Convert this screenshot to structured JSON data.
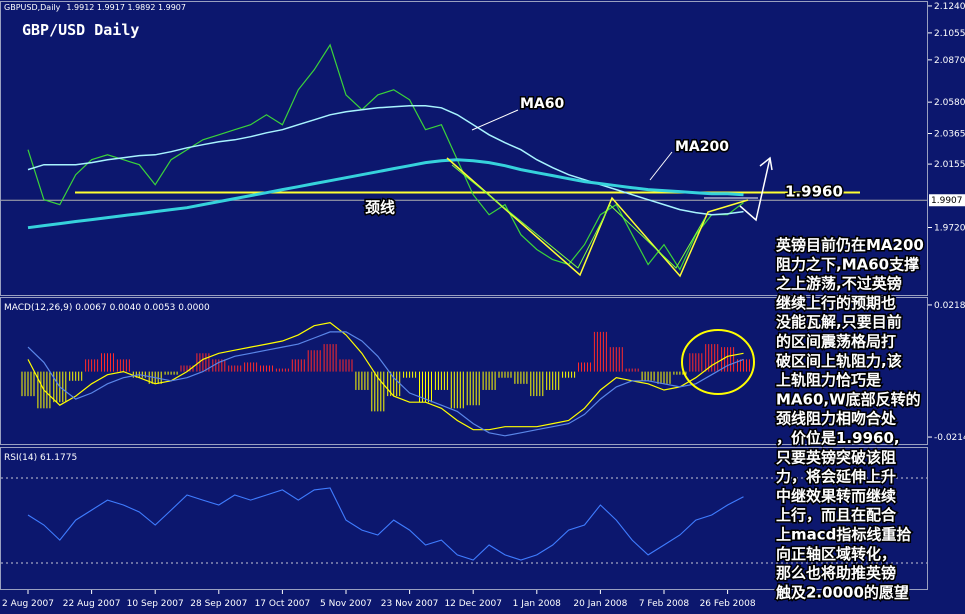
{
  "header": {
    "symbol": "GBPUSD,Daily",
    "quote": "1.9912 1.9917 1.9892 1.9907"
  },
  "chart_data": [
    {
      "type": "line",
      "title": "GBP/USD Daily",
      "series": [
        {
          "color": "#3ad43a",
          "values": [
            2.0254,
            1.9911,
            1.9877,
            2.0082,
            2.0185,
            2.0219,
            2.0185,
            2.0151,
            2.0014,
            2.0185,
            2.0254,
            2.0322,
            2.0356,
            2.0391,
            2.0425,
            2.0493,
            2.0425,
            2.0665,
            2.0802,
            2.0973,
            2.063,
            2.0528,
            2.063,
            2.0665,
            2.0596,
            2.0391,
            2.0425,
            2.0185,
            1.9945,
            1.9808,
            1.9877,
            1.9671,
            1.9569,
            1.95,
            1.9466,
            1.9603,
            1.9808,
            1.9877,
            1.9671,
            1.9466,
            1.9603,
            1.9432,
            1.9671,
            1.9808,
            1.9808,
            1.9891
          ]
        },
        {
          "name": "MA60",
          "color": "#a8f4ff",
          "values": [
            2.0117,
            2.0151,
            2.0151,
            2.0151,
            2.0165,
            2.0185,
            2.0199,
            2.0213,
            2.0219,
            2.024,
            2.0267,
            2.0288,
            2.0308,
            2.0322,
            2.0343,
            2.037,
            2.0391,
            2.0425,
            2.0459,
            2.0493,
            2.0514,
            2.0528,
            2.0541,
            2.0548,
            2.0555,
            2.0555,
            2.0541,
            2.0493,
            2.0425,
            2.0356,
            2.0302,
            2.0254,
            2.0185,
            2.013,
            2.0082,
            2.0048,
            2.0014,
            1.998,
            1.9945,
            1.9911,
            1.9877,
            1.9843,
            1.9822,
            1.9808,
            1.9815,
            1.9829
          ]
        },
        {
          "name": "MA200",
          "color": "#36d2dc",
          "values": [
            1.9719,
            1.9733,
            1.9747,
            1.9761,
            1.9774,
            1.9788,
            1.9802,
            1.9815,
            1.9829,
            1.9843,
            1.9856,
            1.9877,
            1.9898,
            1.9918,
            1.9939,
            1.9959,
            1.998,
            2.0,
            2.0021,
            2.0041,
            2.0062,
            2.0082,
            2.0103,
            2.0124,
            2.0144,
            2.0165,
            2.0178,
            2.0185,
            2.0178,
            2.0165,
            2.0144,
            2.0117,
            2.0096,
            2.0076,
            2.0055,
            2.0035,
            2.0021,
            2.0007,
            1.9993,
            1.998,
            1.9973,
            1.9966,
            1.9959,
            1.9952,
            1.9952,
            1.9945
          ]
        }
      ],
      "ylim": [
        1.9257,
        2.1267
      ],
      "yticks": [
        {
          "value": 2.124,
          "label": "2.1240"
        },
        2.1055,
        {
          "value": 2.087,
          "label": "2.0870"
        },
        {
          "value": 2.058,
          "label": "2.0580"
        },
        2.0365,
        2.0155,
        {
          "value": 1.972,
          "label": "1.9720"
        }
      ],
      "current_price": 1.9907,
      "neckline": {
        "value": 1.996,
        "label": "1.9960"
      },
      "neckline_name": "颈线",
      "annotations": [
        "MA60",
        "MA200"
      ]
    },
    {
      "type": "macd",
      "title": "MACD(12,26,9) 0.0067 0.0040 0.0053 0.0000",
      "up_color": "#ff2a2a",
      "down_color": "#ffff00",
      "histogram": [
        -0.008,
        -0.012,
        -0.01,
        -0.003,
        0.004,
        0.006,
        0.004,
        -0.002,
        -0.004,
        -0.001,
        0.002,
        0.006,
        0.004,
        0.002,
        0.003,
        0.002,
        0.001,
        0.004,
        0.007,
        0.009,
        0.004,
        -0.006,
        -0.013,
        -0.008,
        -0.002,
        -0.01,
        -0.006,
        -0.012,
        -0.011,
        -0.006,
        -0.002,
        -0.004,
        -0.008,
        -0.006,
        -0.002,
        0.003,
        0.013,
        0.008,
        0.001,
        -0.003,
        -0.004,
        -0.001,
        0.006,
        0.009,
        0.008,
        0.004
      ],
      "series": [
        {
          "color": "#ffff00",
          "values": [
            0.004,
            -0.006,
            -0.011,
            -0.008,
            -0.004,
            -0.001,
            0.0,
            -0.002,
            -0.004,
            -0.003,
            0.0,
            0.004,
            0.006,
            0.007,
            0.008,
            0.009,
            0.01,
            0.012,
            0.015,
            0.016,
            0.012,
            0.006,
            -0.002,
            -0.008,
            -0.01,
            -0.01,
            -0.012,
            -0.016,
            -0.019,
            -0.019,
            -0.018,
            -0.018,
            -0.018,
            -0.017,
            -0.016,
            -0.012,
            -0.006,
            -0.002,
            -0.003,
            -0.004,
            -0.006,
            -0.005,
            -0.002,
            0.002,
            0.005,
            0.006
          ]
        },
        {
          "color": "#5a86e8",
          "values": [
            0.008,
            0.003,
            -0.005,
            -0.009,
            -0.007,
            -0.004,
            -0.002,
            -0.001,
            -0.002,
            -0.003,
            -0.002,
            0.0,
            0.003,
            0.005,
            0.006,
            0.007,
            0.008,
            0.009,
            0.011,
            0.013,
            0.013,
            0.01,
            0.005,
            -0.002,
            -0.007,
            -0.009,
            -0.011,
            -0.013,
            -0.017,
            -0.02,
            -0.021,
            -0.02,
            -0.019,
            -0.018,
            -0.017,
            -0.014,
            -0.009,
            -0.005,
            -0.003,
            -0.003,
            -0.004,
            -0.005,
            -0.004,
            -0.001,
            0.002,
            0.004
          ]
        }
      ],
      "ylim": [
        -0.024,
        0.0244
      ],
      "yticks": [
        {
          "value": 0.0218,
          "label": "0.0218"
        },
        {
          "value": -0.0214,
          "label": "-0.0214"
        }
      ]
    },
    {
      "type": "line",
      "title": "RSI(14) 61.1775",
      "categories": [
        "2 Aug 2007",
        null,
        null,
        null,
        "22 Aug 2007",
        null,
        null,
        null,
        "10 Sep 2007",
        null,
        null,
        null,
        "28 Sep 2007",
        null,
        null,
        null,
        "17 Oct 2007",
        null,
        null,
        null,
        "5 Nov 2007",
        null,
        null,
        null,
        "23 Nov 2007",
        null,
        null,
        null,
        "12 Dec 2007",
        null,
        null,
        null,
        "1 Jan 2008",
        null,
        null,
        null,
        "20 Jan 2008",
        null,
        null,
        null,
        "7 Feb 2008",
        null,
        null,
        null,
        "26 Feb 2008",
        null
      ],
      "series": [
        {
          "color": "#3f7cff",
          "values": [
            52.6,
            47.9,
            40.8,
            50.2,
            54.9,
            59.6,
            57.3,
            54.0,
            47.9,
            54.9,
            62.0,
            59.6,
            57.3,
            62.0,
            59.6,
            62.0,
            64.4,
            59.6,
            64.4,
            65.3,
            50.2,
            45.5,
            43.2,
            50.2,
            45.5,
            38.5,
            40.8,
            33.8,
            31.4,
            38.5,
            33.8,
            31.4,
            33.8,
            38.5,
            45.5,
            47.9,
            57.3,
            50.2,
            40.8,
            33.8,
            38.5,
            43.2,
            50.2,
            52.6,
            57.3,
            61.2
          ]
        }
      ],
      "ylim": [
        17.3,
        84.6
      ],
      "levels": [
        30,
        70
      ]
    }
  ],
  "commentary": [
    "英镑目前仍在MA200",
    "阻力之下,MA60支撑",
    "之上游荡,不过英镑",
    "继续上行的预期也",
    "没能瓦解,只要目前",
    "的区间震荡格局打",
    "破区间上轨阻力,该",
    "上轨阻力恰巧是",
    "MA60,W底部反转的",
    "颈线阻力相吻合处",
    "，价位是1.9960,",
    "只要英镑突破该阻",
    "力，将会延伸上升",
    "中继效果转而继续",
    "上行，而且在配合",
    "上macd指标线重拾",
    "向正轴区域转化，",
    "那么也将助推英镑",
    "触及2.0000的愿望"
  ]
}
